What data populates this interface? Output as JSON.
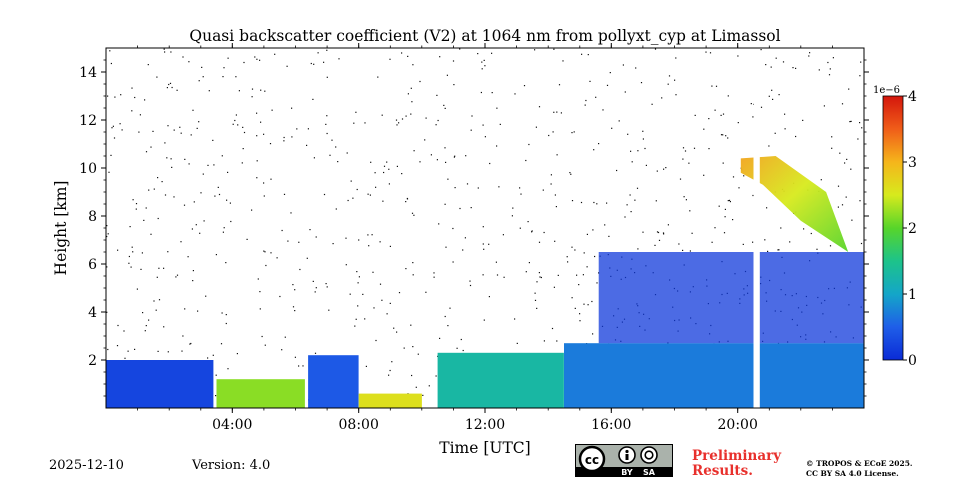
{
  "chart_data": {
    "type": "heatmap",
    "title": "Quasi backscatter coefficient (V2) at 1064 nm from pollyxt_cyp at Limassol",
    "xlabel": "Time [UTC]",
    "ylabel": "Height [km]",
    "xlim_hours": [
      0,
      24
    ],
    "ylim_km": [
      0,
      15
    ],
    "x_ticks": [
      {
        "hour": 4,
        "label": "04:00"
      },
      {
        "hour": 8,
        "label": "08:00"
      },
      {
        "hour": 12,
        "label": "12:00"
      },
      {
        "hour": 16,
        "label": "16:00"
      },
      {
        "hour": 20,
        "label": "20:00"
      }
    ],
    "y_ticks": [
      {
        "km": 2,
        "label": "2"
      },
      {
        "km": 4,
        "label": "4"
      },
      {
        "km": 6,
        "label": "6"
      },
      {
        "km": 8,
        "label": "8"
      },
      {
        "km": 10,
        "label": "10"
      },
      {
        "km": 12,
        "label": "12"
      },
      {
        "km": 14,
        "label": "14"
      }
    ],
    "colorbar": {
      "range": [
        0,
        4
      ],
      "exponent_label": "1e−6",
      "ticks": [
        {
          "value": 0,
          "label": "0"
        },
        {
          "value": 1,
          "label": "1"
        },
        {
          "value": 2,
          "label": "2"
        },
        {
          "value": 3,
          "label": "3"
        },
        {
          "value": 4,
          "label": "4"
        }
      ]
    },
    "layers": [
      {
        "name": "aerosol-layer-a",
        "start_h": 0.0,
        "end_h": 3.4,
        "top_km": 2.0,
        "value": 0.25
      },
      {
        "name": "aerosol-layer-b",
        "start_h": 3.5,
        "end_h": 6.3,
        "top_km": 1.2,
        "value": 2.2
      },
      {
        "name": "aerosol-layer-c",
        "start_h": 6.4,
        "end_h": 8.0,
        "top_km": 2.2,
        "value": 0.45
      },
      {
        "name": "aerosol-layer-d",
        "start_h": 8.0,
        "end_h": 10.0,
        "top_km": 0.6,
        "value": 2.6
      },
      {
        "name": "aerosol-layer-e",
        "start_h": 10.5,
        "end_h": 14.5,
        "top_km": 2.3,
        "value": 1.3
      },
      {
        "name": "boundary-layer-evening",
        "start_h": 14.5,
        "end_h": 24.0,
        "top_km": 2.7,
        "value": 0.7
      },
      {
        "name": "elevated-aerosol",
        "start_h": 15.6,
        "end_h": 24.0,
        "bottom_km": 2.7,
        "top_km": 6.5,
        "value": 0.15
      },
      {
        "name": "cirrus-cloud",
        "start_h": 20.1,
        "end_h": 23.5,
        "bottom_km": 6.5,
        "top_km": 10.5,
        "value": 2.8
      }
    ],
    "data_gaps": [
      {
        "start_h": 20.5,
        "end_h": 20.7
      }
    ]
  },
  "footer": {
    "date": "2025-12-10",
    "version": "Version: 4.0",
    "preliminary": [
      "Preliminary",
      "Results."
    ],
    "license": [
      "© TROPOS & ECoE 2025.",
      "CC BY SA 4.0 License."
    ],
    "cc_badge": {
      "by": "BY",
      "sa": "SA"
    }
  }
}
